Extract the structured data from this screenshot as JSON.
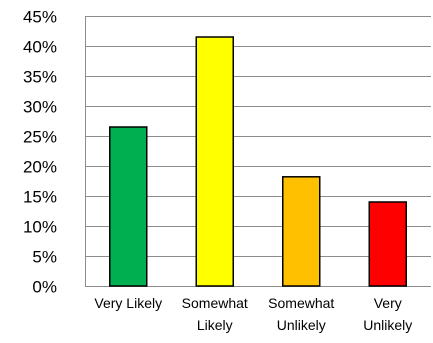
{
  "chart_data": {
    "type": "bar",
    "title": "",
    "xlabel": "",
    "ylabel": "",
    "categories": [
      [
        "Very Likely"
      ],
      [
        "Somewhat",
        "Likely"
      ],
      [
        "Somewhat",
        "Unlikely"
      ],
      [
        "Very",
        "Unlikely"
      ]
    ],
    "values": [
      26.5,
      41.5,
      18.2,
      14.0
    ],
    "colors": [
      "#00b050",
      "#ffff00",
      "#ffc000",
      "#ff0000"
    ],
    "ylim": [
      0,
      45
    ],
    "yticks": [
      0,
      5,
      10,
      15,
      20,
      25,
      30,
      35,
      40,
      45
    ],
    "ytick_labels": [
      "0%",
      "5%",
      "10%",
      "15%",
      "20%",
      "25%",
      "30%",
      "35%",
      "40%",
      "45%"
    ],
    "grid": true,
    "legend": "none"
  }
}
